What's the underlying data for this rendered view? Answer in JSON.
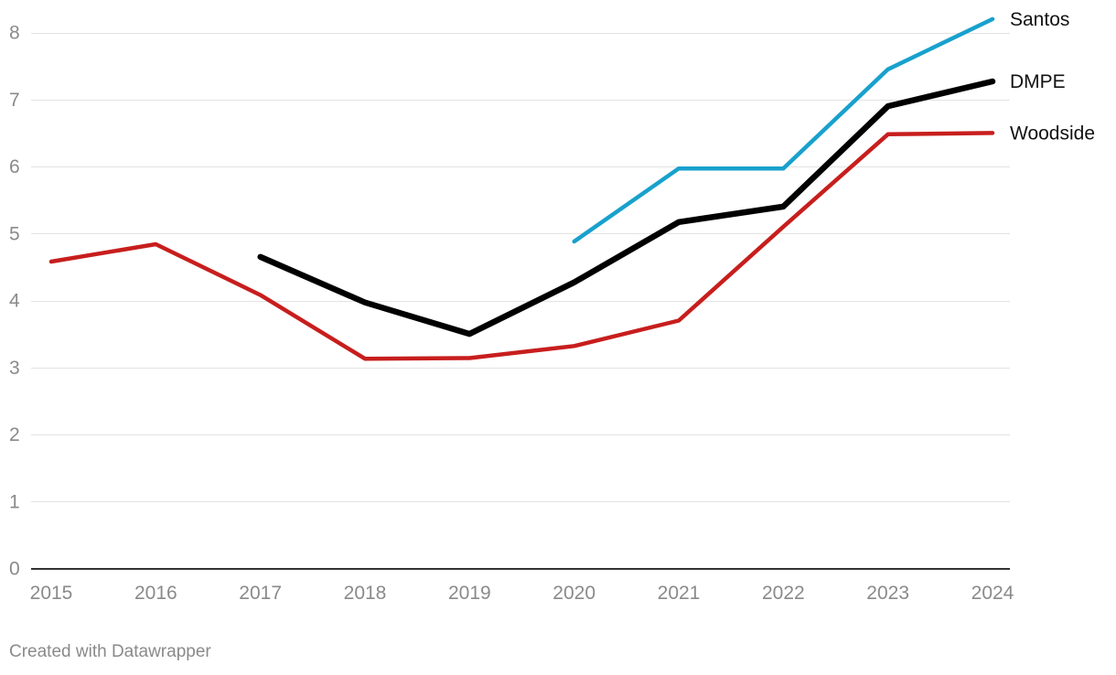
{
  "chart_data": {
    "type": "line",
    "x": [
      2015,
      2016,
      2017,
      2018,
      2019,
      2020,
      2021,
      2022,
      2023,
      2024
    ],
    "x_tick_labels": [
      "2015",
      "2016",
      "2017",
      "2018",
      "2019",
      "2020",
      "2021",
      "2022",
      "2023",
      "2024"
    ],
    "ylim": [
      0,
      8
    ],
    "y_ticks": [
      0,
      1,
      2,
      3,
      4,
      5,
      6,
      7,
      8
    ],
    "y_tick_labels": [
      "0",
      "1",
      "2",
      "3",
      "4",
      "5",
      "6",
      "7",
      "8"
    ],
    "grid": true,
    "legend": "direct labels at line ends",
    "series": [
      {
        "name": "Woodside",
        "color": "#c71e1d",
        "values": [
          4.58,
          4.84,
          4.08,
          3.13,
          3.14,
          3.32,
          3.7,
          5.1,
          6.48,
          6.5
        ]
      },
      {
        "name": "DMPE",
        "color": "#000000",
        "values": [
          null,
          null,
          4.65,
          3.97,
          3.5,
          4.27,
          5.17,
          5.4,
          6.9,
          7.27
        ]
      },
      {
        "name": "Santos",
        "color": "#18a1cd",
        "values": [
          null,
          null,
          null,
          null,
          null,
          4.88,
          5.97,
          5.97,
          7.45,
          8.2
        ]
      }
    ]
  },
  "footer": {
    "text": "Created with Datawrapper"
  }
}
